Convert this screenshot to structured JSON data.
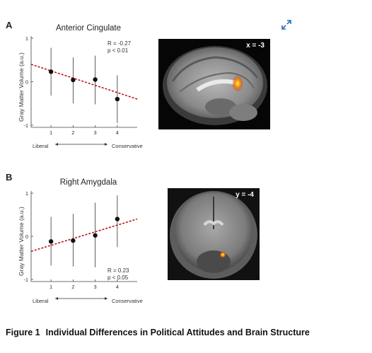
{
  "caption": {
    "figure_label": "Figure 1",
    "title": "Individual Differences in Political Attitudes and Brain Structure"
  },
  "icons": {
    "expand": "expand-diagonal-arrows-icon"
  },
  "colors": {
    "regression_line": "#c0141a",
    "markers": "#111111",
    "activation": "#ff8a00"
  },
  "panels": [
    {
      "letter": "A",
      "title": "Anterior Cingulate",
      "ylabel": "Gray Matter Volume (a.u.)",
      "stats": [
        "R = -0.27",
        "p < 0.01"
      ],
      "axis_left": "Liberal",
      "axis_right": "Conservative",
      "brain_label": "x = -3"
    },
    {
      "letter": "B",
      "title": "Right Amygdala",
      "ylabel": "Gray Matter Volume (a.u.)",
      "stats": [
        "R = 0.23",
        "p < 0.05"
      ],
      "axis_left": "Liberal",
      "axis_right": "Conservative",
      "brain_label": "y = -4"
    }
  ],
  "chart_data": [
    {
      "type": "scatter",
      "title": "Anterior Cingulate",
      "xlabel": "",
      "ylabel": "Gray Matter Volume (a.u.)",
      "x": [
        1,
        2,
        3,
        4
      ],
      "xticks": [
        "1",
        "2",
        "3",
        "4"
      ],
      "yticks": [
        "-1",
        "0",
        "1"
      ],
      "xlim": [
        0.1,
        4.9
      ],
      "ylim": [
        -1.05,
        1.05
      ],
      "series": [
        {
          "values": [
            0.23,
            0.04,
            0.05,
            -0.4
          ],
          "err_low": [
            -0.32,
            -0.5,
            -0.52,
            -0.95
          ],
          "err_high": [
            0.78,
            0.56,
            0.6,
            0.15
          ]
        }
      ],
      "trend": {
        "x": [
          0.1,
          4.9
        ],
        "y": [
          0.4,
          -0.4
        ]
      },
      "annotation": [
        "R = -0.27",
        "p < 0.01"
      ]
    },
    {
      "type": "scatter",
      "title": "Right Amygdala",
      "xlabel": "",
      "ylabel": "Gray Matter Volume (a.u.)",
      "x": [
        1,
        2,
        3,
        4
      ],
      "xticks": [
        "1",
        "2",
        "3",
        "4"
      ],
      "yticks": [
        "-1",
        "0",
        "1"
      ],
      "xlim": [
        0.1,
        4.9
      ],
      "ylim": [
        -1.05,
        1.05
      ],
      "series": [
        {
          "values": [
            -0.12,
            -0.1,
            0.02,
            0.4
          ],
          "err_low": [
            -0.68,
            -0.7,
            -0.72,
            -0.25
          ],
          "err_high": [
            0.45,
            0.52,
            0.78,
            0.95
          ]
        }
      ],
      "trend": {
        "x": [
          0.1,
          4.9
        ],
        "y": [
          -0.35,
          0.4
        ]
      },
      "annotation": [
        "R = 0.23",
        "p < 0.05"
      ]
    }
  ]
}
